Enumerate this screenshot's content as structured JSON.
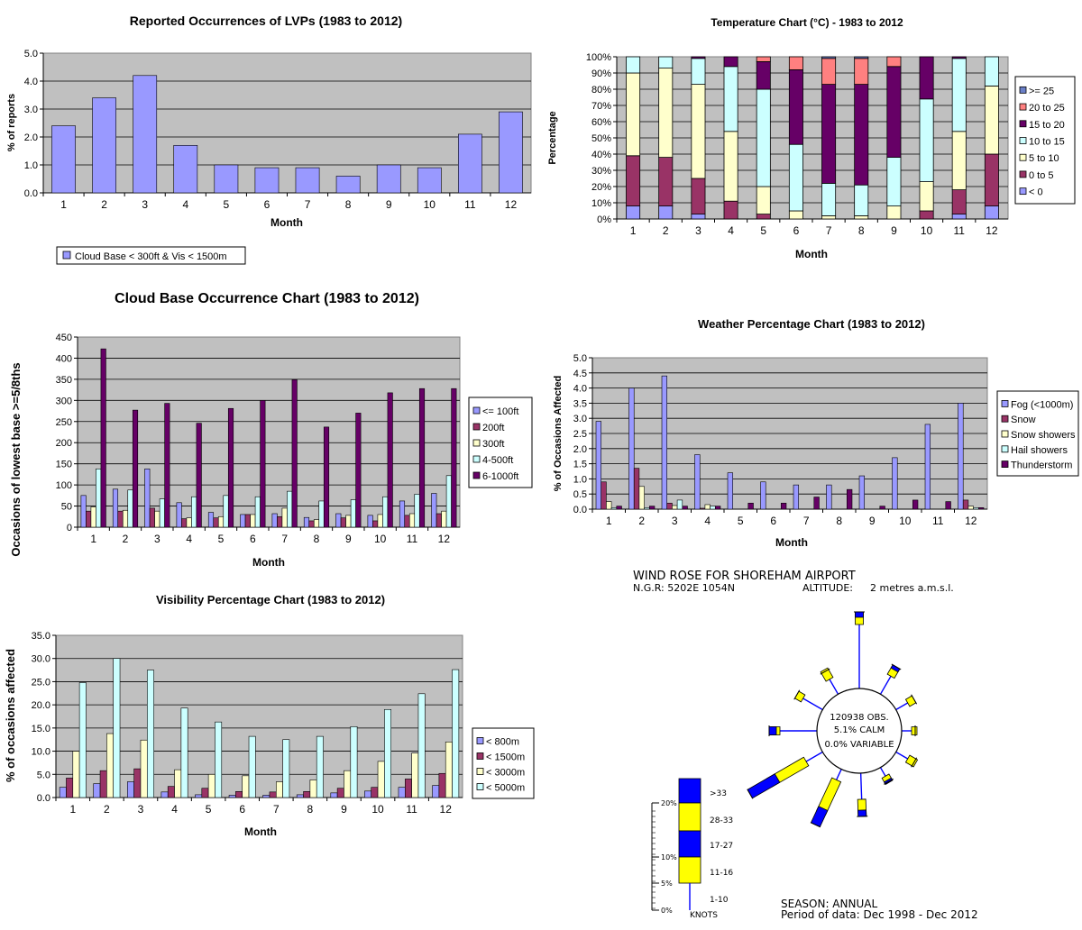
{
  "colors": {
    "plot_bg": "#c0c0c0",
    "lavender": "#9999ff",
    "maroon": "#993366",
    "cream": "#ffffcc",
    "light_cyan": "#ccffff",
    "purple": "#660066",
    "salmon": "#ff8080",
    "steel": "#6a7fc7",
    "wind_blue": "#0000ff",
    "wind_yellow": "#ffff00"
  },
  "chart_data": [
    {
      "id": "lvp",
      "type": "bar",
      "title": "Reported Occurrences of LVPs (1983 to 2012)",
      "xlabel": "Month",
      "ylabel": "% of reports",
      "categories": [
        "1",
        "2",
        "3",
        "4",
        "5",
        "6",
        "7",
        "8",
        "9",
        "10",
        "11",
        "12"
      ],
      "series": [
        {
          "name": "Cloud Base < 300ft & Vis < 1500m",
          "color": "#9999ff",
          "values": [
            2.4,
            3.4,
            4.2,
            1.7,
            1.0,
            0.9,
            0.9,
            0.6,
            1.0,
            0.9,
            2.1,
            2.9
          ]
        }
      ],
      "yticks": [
        "0.0",
        "1.0",
        "2.0",
        "3.0",
        "4.0",
        "5.0"
      ],
      "ylim": [
        0,
        5
      ],
      "grid": true,
      "legend": "bottom"
    },
    {
      "id": "temperature",
      "type": "bar",
      "stacked": true,
      "title": "Temperature Chart (°C) - 1983 to 2012",
      "xlabel": "Month",
      "ylabel": "Percentage",
      "categories": [
        "1",
        "2",
        "3",
        "4",
        "5",
        "6",
        "7",
        "8",
        "9",
        "10",
        "11",
        "12"
      ],
      "yticks": [
        "0%",
        "10%",
        "20%",
        "30%",
        "40%",
        "50%",
        "60%",
        "70%",
        "80%",
        "90%",
        "100%"
      ],
      "ylim": [
        0,
        100
      ],
      "grid": true,
      "legend": "right",
      "legend_order": [
        ">= 25",
        "20 to 25",
        "15 to 20",
        "10 to 15",
        "5 to 10",
        "0 to 5",
        "< 0"
      ],
      "series": [
        {
          "name": "< 0",
          "color": "#9999ff",
          "values": [
            8,
            8,
            3,
            0,
            0,
            0,
            0,
            0,
            0,
            0,
            3,
            8
          ]
        },
        {
          "name": "0 to 5",
          "color": "#993366",
          "values": [
            31,
            30,
            22,
            11,
            3,
            0,
            0,
            0,
            0,
            5,
            15,
            32
          ]
        },
        {
          "name": "5 to 10",
          "color": "#ffffcc",
          "values": [
            51,
            55,
            58,
            43,
            17,
            5,
            2,
            2,
            8,
            18,
            36,
            42
          ]
        },
        {
          "name": "10 to 15",
          "color": "#ccffff",
          "values": [
            10,
            7,
            16,
            40,
            60,
            41,
            20,
            19,
            30,
            51,
            45,
            18
          ]
        },
        {
          "name": "15 to 20",
          "color": "#660066",
          "values": [
            0,
            0,
            1,
            6,
            17,
            46,
            61,
            62,
            56,
            26,
            1,
            0
          ]
        },
        {
          "name": "20 to 25",
          "color": "#ff8080",
          "values": [
            0,
            0,
            0,
            0,
            3,
            8,
            16,
            16,
            6,
            0,
            0,
            0
          ]
        },
        {
          "name": ">= 25",
          "color": "#6a7fc7",
          "values": [
            0,
            0,
            0,
            0,
            0,
            0,
            1,
            1,
            0,
            0,
            0,
            0
          ]
        }
      ]
    },
    {
      "id": "cloud",
      "type": "bar",
      "title": "Cloud Base Occurrence Chart (1983 to 2012)",
      "xlabel": "Month",
      "ylabel": "Occasions of lowest base >=5/8ths",
      "categories": [
        "1",
        "2",
        "3",
        "4",
        "5",
        "6",
        "7",
        "8",
        "9",
        "10",
        "11",
        "12"
      ],
      "yticks": [
        "0",
        "50",
        "100",
        "150",
        "200",
        "250",
        "300",
        "350",
        "400",
        "450"
      ],
      "ylim": [
        0,
        450
      ],
      "grid": true,
      "legend": "right",
      "series": [
        {
          "name": "<= 100ft",
          "color": "#9999ff",
          "values": [
            75,
            90,
            138,
            58,
            35,
            30,
            32,
            23,
            32,
            28,
            62,
            80
          ]
        },
        {
          "name": "200ft",
          "color": "#993366",
          "values": [
            38,
            38,
            45,
            20,
            22,
            30,
            25,
            15,
            22,
            15,
            28,
            32
          ]
        },
        {
          "name": "300ft",
          "color": "#ffffcc",
          "values": [
            48,
            40,
            38,
            22,
            25,
            30,
            45,
            18,
            28,
            30,
            32,
            38
          ]
        },
        {
          "name": "4-500ft",
          "color": "#ccffff",
          "values": [
            138,
            88,
            67,
            72,
            75,
            72,
            85,
            62,
            65,
            72,
            78,
            122
          ]
        },
        {
          "name": "6-1000ft",
          "color": "#660066",
          "values": [
            422,
            277,
            293,
            246,
            281,
            300,
            349,
            237,
            270,
            318,
            328,
            328
          ]
        }
      ]
    },
    {
      "id": "weather",
      "type": "bar",
      "title": "Weather Percentage Chart (1983 to 2012)",
      "xlabel": "Month",
      "ylabel": "% of Occasions Affected",
      "categories": [
        "1",
        "2",
        "3",
        "4",
        "5",
        "6",
        "7",
        "8",
        "9",
        "10",
        "11",
        "12"
      ],
      "yticks": [
        "0.0",
        "0.5",
        "1.0",
        "1.5",
        "2.0",
        "2.5",
        "3.0",
        "3.5",
        "4.0",
        "4.5",
        "5.0"
      ],
      "ylim": [
        0,
        5
      ],
      "grid": true,
      "legend": "right",
      "series": [
        {
          "name": "Fog (<1000m)",
          "color": "#9999ff",
          "values": [
            2.9,
            4.0,
            4.4,
            1.8,
            1.2,
            0.9,
            0.8,
            0.8,
            1.1,
            1.7,
            2.8,
            3.5
          ]
        },
        {
          "name": "Snow",
          "color": "#993366",
          "values": [
            0.9,
            1.35,
            0.2,
            0.03,
            0,
            0,
            0,
            0,
            0,
            0,
            0,
            0.3
          ]
        },
        {
          "name": "Snow showers",
          "color": "#ffffcc",
          "values": [
            0.25,
            0.75,
            0.12,
            0.15,
            0,
            0,
            0,
            0,
            0,
            0,
            0,
            0.1
          ]
        },
        {
          "name": "Hail showers",
          "color": "#ccffff",
          "values": [
            0.05,
            0.05,
            0.3,
            0.1,
            0,
            0,
            0,
            0,
            0,
            0,
            0,
            0.05
          ]
        },
        {
          "name": "Thunderstorm",
          "color": "#660066",
          "values": [
            0.1,
            0.1,
            0.1,
            0.1,
            0.2,
            0.2,
            0.4,
            0.65,
            0.1,
            0.3,
            0.25,
            0.05
          ]
        }
      ]
    },
    {
      "id": "visibility",
      "type": "bar",
      "title": "Visibility Percentage Chart (1983 to 2012)",
      "xlabel": "Month",
      "ylabel": "% of occasions affected",
      "categories": [
        "1",
        "2",
        "3",
        "4",
        "5",
        "6",
        "7",
        "8",
        "9",
        "10",
        "11",
        "12"
      ],
      "yticks": [
        "0.0",
        "5.0",
        "10.0",
        "15.0",
        "20.0",
        "25.0",
        "30.0",
        "35.0"
      ],
      "ylim": [
        0,
        35
      ],
      "grid": true,
      "legend": "right",
      "series": [
        {
          "name": "< 800m",
          "color": "#9999ff",
          "values": [
            2.2,
            3.0,
            3.4,
            1.2,
            0.6,
            0.5,
            0.5,
            0.6,
            1.0,
            1.4,
            2.2,
            2.6
          ]
        },
        {
          "name": "< 1500m",
          "color": "#993366",
          "values": [
            4.2,
            5.8,
            6.2,
            2.4,
            2.0,
            1.3,
            1.2,
            1.3,
            2.0,
            2.2,
            4.0,
            5.2
          ]
        },
        {
          "name": "< 3000m",
          "color": "#ffffcc",
          "values": [
            10.0,
            13.8,
            12.4,
            6.0,
            5.0,
            4.7,
            3.4,
            3.8,
            5.8,
            7.8,
            9.6,
            12.0
          ]
        },
        {
          "name": "< 5000m",
          "color": "#ccffff",
          "values": [
            24.8,
            30.0,
            27.5,
            19.3,
            16.3,
            13.2,
            12.5,
            13.2,
            15.3,
            19.0,
            22.4,
            27.6
          ]
        }
      ]
    }
  ],
  "wind_rose": {
    "title": "WIND ROSE FOR SHOREHAM AIRPORT",
    "ngr": "N.G.R: 5202E 1054N",
    "altitude_label": "ALTITUDE:",
    "altitude_value": "2 metres a.m.s.l.",
    "centre_obs": "120938 OBS.",
    "centre_calm": "5.1% CALM",
    "centre_variable": "0.0% VARIABLE",
    "season": "SEASON: ANNUAL",
    "period": "Period of data: Dec 1998 - Dec 2012",
    "scale_ticks": [
      "0%",
      "5%",
      "10%",
      "20%"
    ],
    "speed_classes": [
      "1-10",
      "11-16",
      "17-27",
      "28-33",
      ">33"
    ],
    "units": "KNOTS"
  }
}
